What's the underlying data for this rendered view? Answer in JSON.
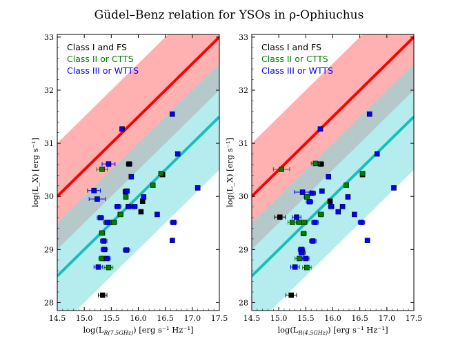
{
  "title": "Güdel–Benz relation for YSOs in ρ-Ophiuchus",
  "chart_data": [
    {
      "type": "scatter",
      "xlabel_main": "log(L",
      "xlabel_sub": "R(7.5GHz)",
      "xlabel_rest": ") [erg s⁻¹ Hz⁻¹]",
      "ylabel": "log(L_X) [erg s⁻¹]",
      "xlim": [
        14.5,
        17.5
      ],
      "ylim": [
        27.85,
        33.05
      ],
      "xticks": [
        "14.5",
        "15.0",
        "15.5",
        "16.0",
        "16.5",
        "17.0",
        "17.5"
      ],
      "yticks": [
        "28",
        "29",
        "30",
        "31",
        "32",
        "33"
      ],
      "relations": [
        {
          "name": "red-relation",
          "x0": 14.5,
          "y0": 30.0,
          "slope": 1.0,
          "halfwidth": 1.0,
          "line_color": "#ff0000",
          "band_color": "#ff6f6f"
        },
        {
          "name": "cyan-relation",
          "x0": 14.5,
          "y0": 28.5,
          "slope": 1.0,
          "halfwidth": 1.0,
          "line_color": "#17bebb",
          "band_color": "#79dfe2"
        }
      ],
      "legend": [
        {
          "label": "Class I and FS",
          "color": "#000000"
        },
        {
          "label": "Class II or CTTS",
          "color": "#008000"
        },
        {
          "label": "Class III or WTTS",
          "color": "#0000ff"
        }
      ],
      "series": [
        {
          "name": "Class I and FS",
          "color": "#000000",
          "points": [
            {
              "x": 15.83,
              "y": 30.61,
              "xerr": 0.05
            },
            {
              "x": 16.45,
              "y": 30.41,
              "xerr": 0.04
            },
            {
              "x": 16.08,
              "y": 29.91,
              "xerr": 0.03
            },
            {
              "x": 16.05,
              "y": 29.71,
              "xerr": 0.03
            },
            {
              "x": 15.34,
              "y": 28.14,
              "xerr": 0.08
            }
          ]
        },
        {
          "name": "Class II or CTTS",
          "color": "#008000",
          "points": [
            {
              "x": 15.33,
              "y": 30.51,
              "xerr": 0.1
            },
            {
              "x": 16.42,
              "y": 30.43,
              "xerr": 0.03
            },
            {
              "x": 16.27,
              "y": 30.21,
              "xerr": 0.02
            },
            {
              "x": 15.77,
              "y": 29.99,
              "xerr": 0.03
            },
            {
              "x": 15.67,
              "y": 29.66,
              "xerr": 0.05
            },
            {
              "x": 15.48,
              "y": 29.51,
              "xerr": 0.05
            },
            {
              "x": 15.55,
              "y": 29.51,
              "xerr": 0.05
            },
            {
              "x": 15.33,
              "y": 29.31,
              "xerr": 0.05
            },
            {
              "x": 15.33,
              "y": 28.83,
              "xerr": 0.06
            },
            {
              "x": 15.45,
              "y": 28.66,
              "xerr": 0.08
            }
          ]
        },
        {
          "name": "Class III or WTTS",
          "color": "#0000ff",
          "points": [
            {
              "x": 15.7,
              "y": 31.27,
              "xerr": 0.04
            },
            {
              "x": 16.63,
              "y": 31.55,
              "xerr": 0.02
            },
            {
              "x": 16.73,
              "y": 30.8,
              "xerr": 0.02
            },
            {
              "x": 17.1,
              "y": 30.16,
              "xerr": 0.02
            },
            {
              "x": 15.45,
              "y": 30.61,
              "xerr": 0.12
            },
            {
              "x": 15.87,
              "y": 30.37,
              "xerr": 0.03
            },
            {
              "x": 15.18,
              "y": 30.11,
              "xerr": 0.12
            },
            {
              "x": 15.24,
              "y": 29.95,
              "xerr": 0.15
            },
            {
              "x": 15.76,
              "y": 30.09,
              "xerr": 0.04
            },
            {
              "x": 15.79,
              "y": 30.1,
              "xerr": 0.04
            },
            {
              "x": 16.1,
              "y": 29.99,
              "xerr": 0.03
            },
            {
              "x": 15.62,
              "y": 29.81,
              "xerr": 0.06
            },
            {
              "x": 15.82,
              "y": 29.81,
              "xerr": 0.05
            },
            {
              "x": 15.93,
              "y": 29.81,
              "xerr": 0.05
            },
            {
              "x": 16.35,
              "y": 29.66,
              "xerr": 0.02
            },
            {
              "x": 15.3,
              "y": 29.6,
              "xerr": 0.06
            },
            {
              "x": 15.42,
              "y": 29.51,
              "xerr": 0.06
            },
            {
              "x": 16.65,
              "y": 29.51,
              "xerr": 0.06
            },
            {
              "x": 15.36,
              "y": 29.16,
              "xerr": 0.06
            },
            {
              "x": 15.37,
              "y": 29.0,
              "xerr": 0.06
            },
            {
              "x": 15.78,
              "y": 28.99,
              "xerr": 0.06
            },
            {
              "x": 16.63,
              "y": 29.17,
              "xerr": 0.02
            },
            {
              "x": 15.42,
              "y": 28.83,
              "xerr": 0.06
            },
            {
              "x": 15.26,
              "y": 28.67,
              "xerr": 0.08
            }
          ]
        }
      ]
    },
    {
      "type": "scatter",
      "xlabel_main": "log(L",
      "xlabel_sub": "R(4.5GHz)",
      "xlabel_rest": ") [erg s⁻¹ Hz⁻¹]",
      "ylabel": "log(L_X) [erg s⁻¹]",
      "xlim": [
        14.5,
        17.5
      ],
      "ylim": [
        27.85,
        33.05
      ],
      "xticks": [
        "14.5",
        "15.0",
        "15.5",
        "16.0",
        "16.5",
        "17.0",
        "17.5"
      ],
      "yticks": [
        "28",
        "29",
        "30",
        "31",
        "32",
        "33"
      ],
      "relations": [
        {
          "name": "red-relation",
          "x0": 14.5,
          "y0": 30.0,
          "slope": 1.0,
          "halfwidth": 1.0,
          "line_color": "#ff0000",
          "band_color": "#ff6f6f"
        },
        {
          "name": "cyan-relation",
          "x0": 14.5,
          "y0": 28.5,
          "slope": 1.0,
          "halfwidth": 1.0,
          "line_color": "#17bebb",
          "band_color": "#79dfe2"
        }
      ],
      "legend": [
        {
          "label": "Class I and FS",
          "color": "#000000"
        },
        {
          "label": "Class II or CTTS",
          "color": "#008000"
        },
        {
          "label": "Class III or WTTS",
          "color": "#0000ff"
        }
      ],
      "series": [
        {
          "name": "Class I and FS",
          "color": "#000000",
          "points": [
            {
              "x": 15.78,
              "y": 30.61,
              "xerr": 0.05
            },
            {
              "x": 16.55,
              "y": 30.41,
              "xerr": 0.04
            },
            {
              "x": 15.95,
              "y": 29.91,
              "xerr": 0.03
            },
            {
              "x": 15.02,
              "y": 29.61,
              "xerr": 0.1
            },
            {
              "x": 15.23,
              "y": 28.14,
              "xerr": 0.1
            }
          ]
        },
        {
          "name": "Class II or CTTS",
          "color": "#008000",
          "points": [
            {
              "x": 15.05,
              "y": 30.51,
              "xerr": 0.15
            },
            {
              "x": 15.68,
              "y": 30.62,
              "xerr": 0.08
            },
            {
              "x": 16.55,
              "y": 30.43,
              "xerr": 0.03
            },
            {
              "x": 16.25,
              "y": 30.21,
              "xerr": 0.02
            },
            {
              "x": 15.52,
              "y": 29.99,
              "xerr": 0.05
            },
            {
              "x": 15.78,
              "y": 29.66,
              "xerr": 0.05
            },
            {
              "x": 15.25,
              "y": 29.51,
              "xerr": 0.08
            },
            {
              "x": 15.38,
              "y": 29.51,
              "xerr": 0.06
            },
            {
              "x": 15.47,
              "y": 29.51,
              "xerr": 0.06
            },
            {
              "x": 15.46,
              "y": 29.3,
              "xerr": 0.05
            },
            {
              "x": 15.38,
              "y": 28.83,
              "xerr": 0.08
            },
            {
              "x": 15.52,
              "y": 28.66,
              "xerr": 0.08
            }
          ]
        },
        {
          "name": "Class III or WTTS",
          "color": "#0000ff",
          "points": [
            {
              "x": 15.77,
              "y": 31.27,
              "xerr": 0.04
            },
            {
              "x": 16.68,
              "y": 31.55,
              "xerr": 0.02
            },
            {
              "x": 16.82,
              "y": 30.8,
              "xerr": 0.02
            },
            {
              "x": 17.13,
              "y": 30.16,
              "xerr": 0.02
            },
            {
              "x": 15.44,
              "y": 30.08,
              "xerr": 0.15
            },
            {
              "x": 15.92,
              "y": 30.37,
              "xerr": 0.03
            },
            {
              "x": 15.62,
              "y": 30.06,
              "xerr": 0.06
            },
            {
              "x": 15.8,
              "y": 30.1,
              "xerr": 0.04
            },
            {
              "x": 16.28,
              "y": 29.99,
              "xerr": 0.03
            },
            {
              "x": 15.57,
              "y": 29.9,
              "xerr": 0.06
            },
            {
              "x": 15.97,
              "y": 29.81,
              "xerr": 0.05
            },
            {
              "x": 16.18,
              "y": 29.81,
              "xerr": 0.04
            },
            {
              "x": 16.1,
              "y": 29.71,
              "xerr": 0.04
            },
            {
              "x": 16.4,
              "y": 29.66,
              "xerr": 0.02
            },
            {
              "x": 15.33,
              "y": 29.61,
              "xerr": 0.08
            },
            {
              "x": 15.67,
              "y": 29.51,
              "xerr": 0.06
            },
            {
              "x": 16.53,
              "y": 29.51,
              "xerr": 0.06
            },
            {
              "x": 15.63,
              "y": 29.16,
              "xerr": 0.06
            },
            {
              "x": 15.42,
              "y": 29.0,
              "xerr": 0.06
            },
            {
              "x": 15.43,
              "y": 28.94,
              "xerr": 0.06
            },
            {
              "x": 16.64,
              "y": 29.17,
              "xerr": 0.02
            },
            {
              "x": 15.5,
              "y": 28.83,
              "xerr": 0.06
            },
            {
              "x": 15.3,
              "y": 28.67,
              "xerr": 0.08
            }
          ]
        }
      ]
    }
  ]
}
